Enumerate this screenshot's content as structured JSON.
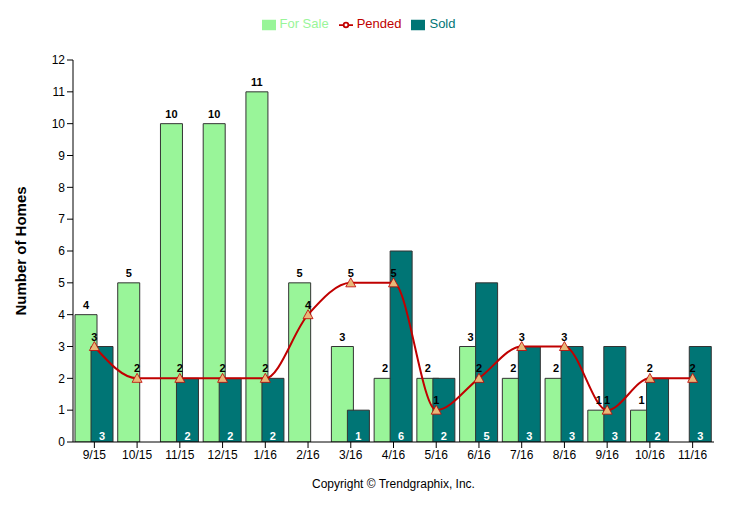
{
  "chart_data": {
    "type": "bar",
    "ylabel": "Number of Homes",
    "annotations": [
      "Copyright © Trendgraphix, Inc."
    ],
    "categories": [
      "9/15",
      "10/15",
      "11/15",
      "12/15",
      "1/16",
      "2/16",
      "3/16",
      "4/16",
      "5/16",
      "6/16",
      "7/16",
      "8/16",
      "9/16",
      "10/16",
      "11/16"
    ],
    "series": [
      {
        "name": "For Sale",
        "type": "bar",
        "color": "#99f599",
        "values": [
          4,
          5,
          10,
          10,
          11,
          5,
          3,
          2,
          2,
          3,
          2,
          2,
          1,
          1,
          0
        ]
      },
      {
        "name": "Sold",
        "type": "bar",
        "color": "#007575",
        "values": [
          3,
          0,
          2,
          2,
          2,
          0,
          1,
          6,
          2,
          5,
          3,
          3,
          3,
          2,
          3
        ]
      },
      {
        "name": "Pended",
        "type": "line",
        "color": "#c00000",
        "marker": "triangle",
        "values": [
          3,
          2,
          2,
          2,
          2,
          4,
          5,
          5,
          1,
          2,
          3,
          3,
          1,
          2,
          2
        ]
      }
    ],
    "ylim": [
      0,
      12
    ],
    "yticks": [
      0,
      1,
      2,
      3,
      4,
      5,
      6,
      7,
      8,
      9,
      10,
      11,
      12
    ],
    "grid": false,
    "legend": "top",
    "data_labels": true
  }
}
